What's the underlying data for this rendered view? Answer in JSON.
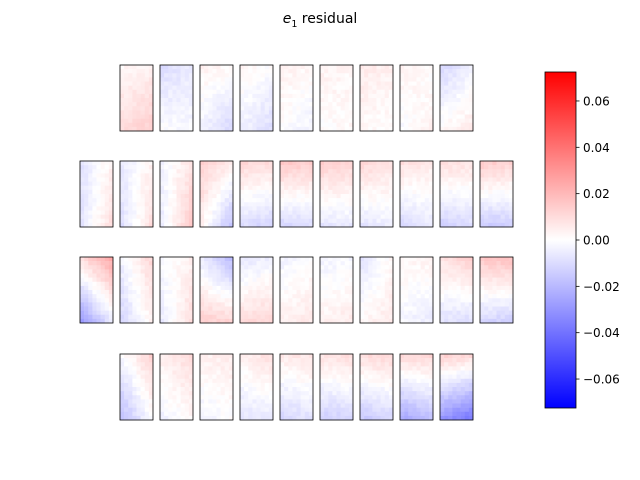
{
  "chart_data": {
    "type": "heatmap",
    "title_var": "e",
    "title_sub": "1",
    "title_rest": " residual",
    "colormap": [
      "#0000ff",
      "#ffffff",
      "#ff0000"
    ],
    "clim": [
      -0.0725,
      0.0725
    ],
    "colorbar_ticks": [
      -0.06,
      -0.04,
      -0.02,
      0.0,
      0.02,
      0.04,
      0.06
    ],
    "colorbar_tick_labels": [
      "−0.06",
      "−0.04",
      "−0.02",
      "0.00",
      "0.02",
      "0.04",
      "0.06"
    ],
    "panel_grid": {
      "rows": 4,
      "row_counts": [
        9,
        11,
        11,
        9
      ],
      "cells_x": 8,
      "cells_y": 16
    },
    "panels": [
      {
        "tl": 0.002,
        "tr": 0.004,
        "bl": 0.01,
        "br": 0.014,
        "grad": "vertical"
      },
      {
        "tl": -0.01,
        "tr": -0.006,
        "bl": 0.0,
        "br": -0.002,
        "grad": "none"
      },
      {
        "tl": 0.004,
        "tr": 0.002,
        "bl": -0.004,
        "br": -0.012,
        "grad": "diag"
      },
      {
        "tl": 0.003,
        "tr": 0.0,
        "bl": -0.004,
        "br": -0.01,
        "grad": "diag"
      },
      {
        "tl": 0.004,
        "tr": 0.002,
        "bl": 0.0,
        "br": -0.004,
        "grad": "none"
      },
      {
        "tl": 0.004,
        "tr": 0.002,
        "bl": 0.0,
        "br": 0.002,
        "grad": "none"
      },
      {
        "tl": 0.006,
        "tr": 0.004,
        "bl": 0.002,
        "br": 0.0,
        "grad": "none"
      },
      {
        "tl": 0.004,
        "tr": 0.0,
        "bl": -0.002,
        "br": 0.004,
        "grad": "none"
      },
      {
        "tl": -0.012,
        "tr": -0.004,
        "bl": 0.002,
        "br": 0.006,
        "grad": "none"
      },
      {
        "tl": -0.008,
        "tr": 0.004,
        "bl": -0.008,
        "br": 0.01,
        "grad": "lr"
      },
      {
        "tl": -0.006,
        "tr": 0.004,
        "bl": -0.01,
        "br": 0.01,
        "grad": "lr"
      },
      {
        "tl": -0.004,
        "tr": 0.008,
        "bl": -0.006,
        "br": 0.016,
        "grad": "lr"
      },
      {
        "tl": 0.014,
        "tr": 0.006,
        "bl": 0.004,
        "br": -0.018,
        "grad": "diag"
      },
      {
        "tl": 0.012,
        "tr": 0.01,
        "bl": -0.01,
        "br": -0.012,
        "grad": "vertical"
      },
      {
        "tl": 0.016,
        "tr": 0.014,
        "bl": -0.012,
        "br": -0.01,
        "grad": "vertical"
      },
      {
        "tl": 0.014,
        "tr": 0.012,
        "bl": -0.008,
        "br": -0.006,
        "grad": "vertical"
      },
      {
        "tl": 0.012,
        "tr": 0.008,
        "bl": -0.008,
        "br": -0.004,
        "grad": "vertical"
      },
      {
        "tl": 0.01,
        "tr": 0.006,
        "bl": -0.012,
        "br": -0.006,
        "grad": "vertical"
      },
      {
        "tl": 0.01,
        "tr": 0.008,
        "bl": -0.014,
        "br": -0.01,
        "grad": "vertical"
      },
      {
        "tl": 0.016,
        "tr": 0.012,
        "bl": -0.016,
        "br": -0.014,
        "grad": "vertical"
      },
      {
        "tl": 0.01,
        "tr": 0.026,
        "bl": -0.03,
        "br": -0.006,
        "grad": "diag"
      },
      {
        "tl": -0.004,
        "tr": 0.012,
        "bl": -0.012,
        "br": 0.004,
        "grad": "lr"
      },
      {
        "tl": -0.002,
        "tr": 0.004,
        "bl": -0.006,
        "br": 0.01,
        "grad": "lr"
      },
      {
        "tl": -0.006,
        "tr": -0.02,
        "bl": 0.014,
        "br": 0.012,
        "grad": "vertical"
      },
      {
        "tl": -0.008,
        "tr": -0.004,
        "bl": 0.01,
        "br": 0.012,
        "grad": "vertical"
      },
      {
        "tl": -0.004,
        "tr": 0.0,
        "bl": 0.004,
        "br": 0.006,
        "grad": "vertical"
      },
      {
        "tl": -0.004,
        "tr": -0.002,
        "bl": 0.004,
        "br": 0.006,
        "grad": "vertical"
      },
      {
        "tl": -0.008,
        "tr": 0.002,
        "bl": 0.002,
        "br": 0.006,
        "grad": "vertical"
      },
      {
        "tl": 0.002,
        "tr": 0.004,
        "bl": -0.002,
        "br": -0.006,
        "grad": "vertical"
      },
      {
        "tl": 0.008,
        "tr": 0.014,
        "bl": -0.008,
        "br": -0.01,
        "grad": "vertical"
      },
      {
        "tl": 0.016,
        "tr": 0.018,
        "bl": -0.012,
        "br": -0.014,
        "grad": "vertical"
      },
      {
        "tl": -0.002,
        "tr": 0.014,
        "bl": -0.02,
        "br": 0.0,
        "grad": "diag"
      },
      {
        "tl": 0.004,
        "tr": 0.01,
        "bl": -0.004,
        "br": 0.002,
        "grad": "lr"
      },
      {
        "tl": 0.004,
        "tr": 0.006,
        "bl": -0.004,
        "br": 0.0,
        "grad": "none"
      },
      {
        "tl": 0.004,
        "tr": 0.01,
        "bl": -0.008,
        "br": -0.006,
        "grad": "vertical"
      },
      {
        "tl": 0.006,
        "tr": 0.008,
        "bl": -0.012,
        "br": -0.008,
        "grad": "vertical"
      },
      {
        "tl": 0.008,
        "tr": 0.01,
        "bl": -0.014,
        "br": -0.012,
        "grad": "vertical"
      },
      {
        "tl": 0.01,
        "tr": 0.012,
        "bl": -0.016,
        "br": -0.012,
        "grad": "vertical"
      },
      {
        "tl": 0.012,
        "tr": 0.012,
        "bl": -0.026,
        "br": -0.018,
        "grad": "vertical"
      },
      {
        "tl": 0.014,
        "tr": 0.012,
        "bl": -0.03,
        "br": -0.04,
        "grad": "vertical"
      }
    ]
  }
}
